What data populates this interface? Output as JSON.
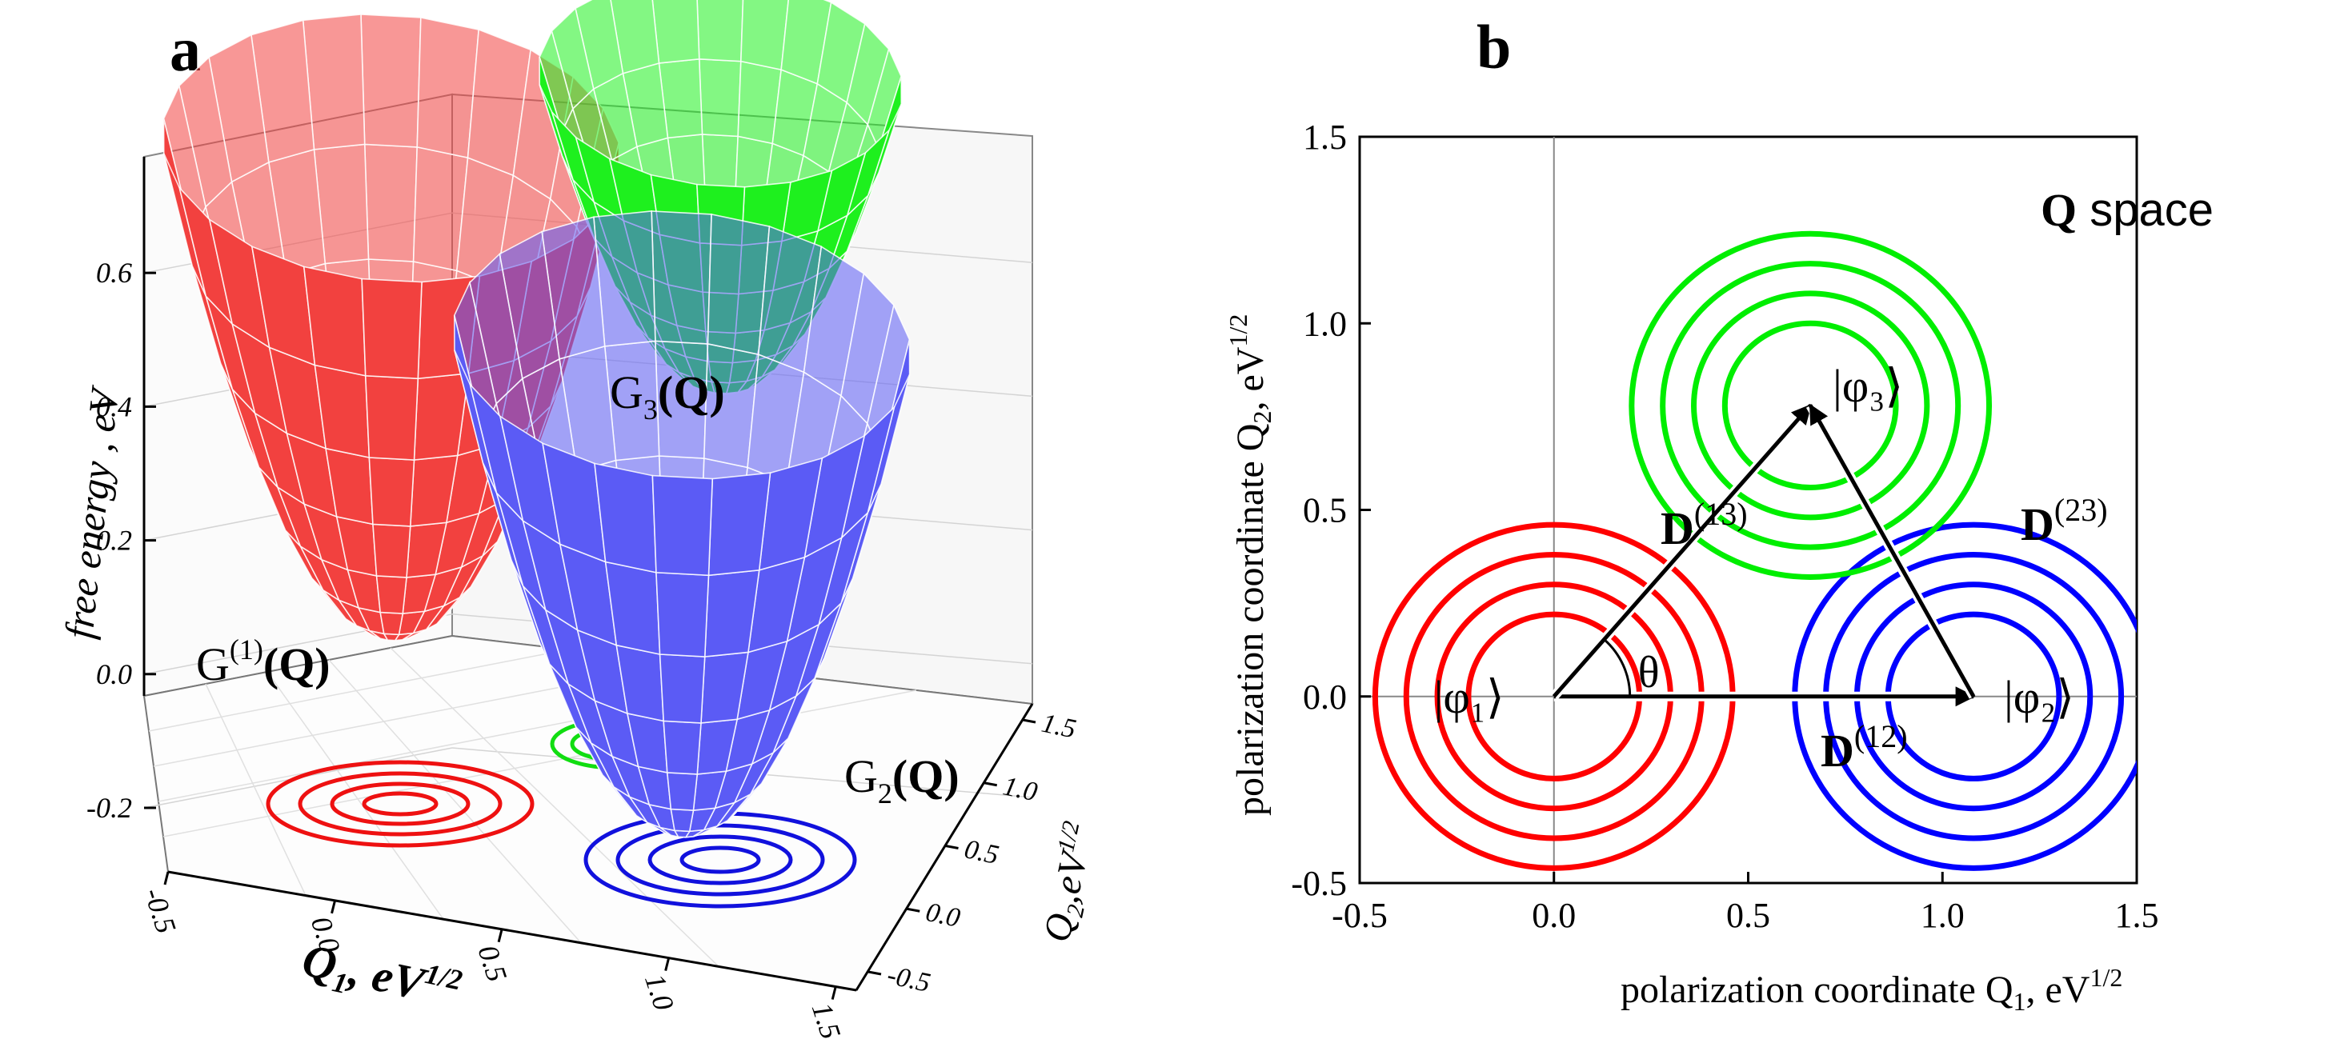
{
  "panels": {
    "a": "a",
    "b": "b"
  },
  "chart_data": [
    {
      "panel": "a",
      "type": "surface3d",
      "title": "",
      "zlabel": "free energy , eV",
      "xlabel_main": "Q",
      "xlabel_sub": "1",
      "xlabel_unit": ", eV",
      "xlabel_exp": "1/2",
      "ylabel_main": "Q",
      "ylabel_sub": "2",
      "ylabel_unit": ",eV",
      "ylabel_exp": "1/2",
      "z_ticks": [
        "-0.2",
        "0.0",
        "0.2",
        "0.4",
        "0.6"
      ],
      "x_ticks": [
        "-0.5",
        "0.0",
        "0.5",
        "1.0",
        "1.5"
      ],
      "y_ticks": [
        "1.5",
        "1.0",
        "0.5",
        "0.0",
        "-0.5"
      ],
      "zlim": [
        -0.3,
        0.7
      ],
      "xlim": [
        -0.5,
        1.6
      ],
      "ylim": [
        -0.6,
        1.5
      ],
      "surfaces": [
        {
          "name": "G(1)(Q)",
          "label_main": "G",
          "label_sup": "(1)",
          "label_q": "(Q)",
          "center_q1": 0.0,
          "center_q2": 0.0,
          "min_energy": 0.05,
          "color": "#f2413f"
        },
        {
          "name": "G2(Q)",
          "label_main": "G",
          "label_sub": "2",
          "label_q": "(Q)",
          "center_q1": 1.08,
          "center_q2": 0.0,
          "min_energy": -0.05,
          "color": "#5b5bf5"
        },
        {
          "name": "G3(Q)",
          "label_main": "G",
          "label_sub": "3",
          "label_q": "(Q)",
          "center_q1": 0.65,
          "center_q2": 0.78,
          "min_energy": 0.32,
          "color": "#1ef01e"
        }
      ]
    },
    {
      "panel": "b",
      "type": "contour",
      "title": "Q space",
      "title_bold": "Q",
      "title_rest": " space",
      "xlabel": "polarization coordinate Q",
      "xlabel_sub": "1",
      "xlabel_unit": ", eV",
      "xlabel_exp": "1/2",
      "ylabel": "polarization coordinate Q",
      "ylabel_sub": "2",
      "ylabel_unit": ", eV",
      "ylabel_exp": "1/2",
      "xlim": [
        -0.5,
        1.5
      ],
      "ylim": [
        -0.5,
        1.5
      ],
      "x_ticks": [
        -0.5,
        0.0,
        0.5,
        1.0,
        1.5
      ],
      "x_tick_labels": [
        "-0.5",
        "0.0",
        "0.5",
        "1.0",
        "1.5"
      ],
      "y_ticks": [
        -0.5,
        0.0,
        0.5,
        1.0,
        1.5
      ],
      "y_tick_labels": [
        "-0.5",
        "0.0",
        "0.5",
        "1.0",
        "1.5"
      ],
      "contour_radii": [
        0.22,
        0.3,
        0.38,
        0.46
      ],
      "contour_aspect_y": 1.0,
      "states": [
        {
          "name": "phi1",
          "label": "|φ₁⟩",
          "q1": 0.0,
          "q2": 0.0,
          "color": "#ff0000"
        },
        {
          "name": "phi2",
          "label": "|φ₂⟩",
          "q1": 1.08,
          "q2": 0.0,
          "color": "#0000ff"
        },
        {
          "name": "phi3",
          "label": "|φ₃⟩",
          "q1": 0.66,
          "q2": 0.78,
          "color": "#00ee00"
        }
      ],
      "vectors": [
        {
          "name": "D12",
          "label": "D",
          "sup": "(12)",
          "from": [
            0.0,
            0.0
          ],
          "to": [
            1.08,
            0.0
          ]
        },
        {
          "name": "D13",
          "label": "D",
          "sup": "(13)",
          "from": [
            0.0,
            0.0
          ],
          "to": [
            0.66,
            0.78
          ]
        },
        {
          "name": "D23",
          "label": "D",
          "sup": "(23)",
          "from": [
            1.08,
            0.0
          ],
          "to": [
            0.66,
            0.78
          ]
        }
      ],
      "angle_label": "θ"
    }
  ]
}
